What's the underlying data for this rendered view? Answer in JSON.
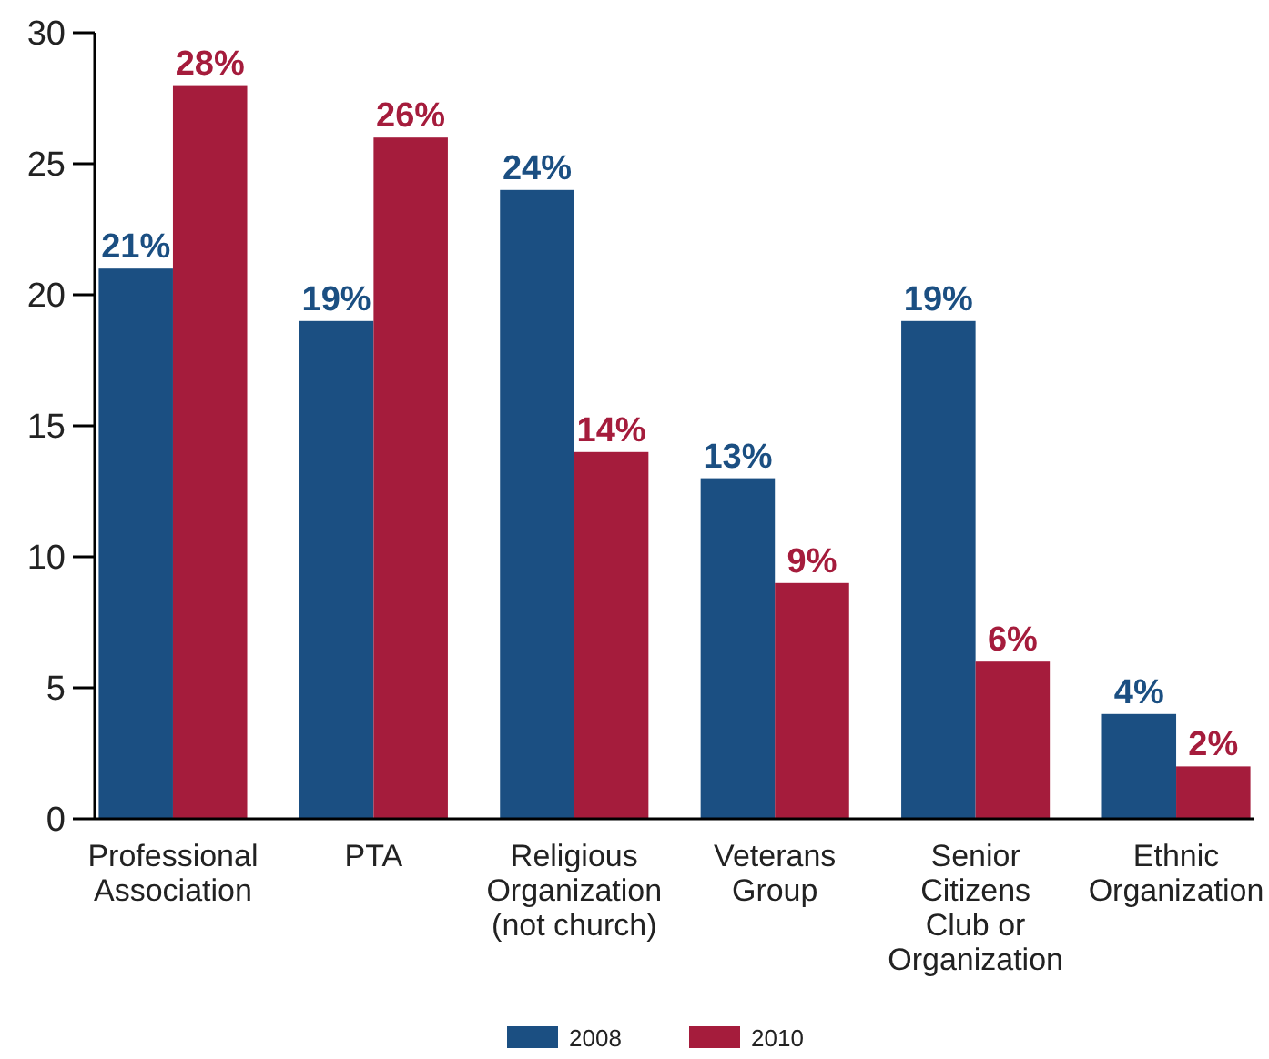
{
  "chart_data": {
    "type": "bar",
    "categories": [
      "Professional Association",
      "PTA",
      "Religious Organization (not church)",
      "Veterans Group",
      "Senior Citizens Club or Organization",
      "Ethnic Organization"
    ],
    "series": [
      {
        "name": "2008",
        "color": "#1b4f82",
        "values": [
          21,
          19,
          24,
          13,
          19,
          4
        ],
        "value_labels": [
          "21%",
          "19%",
          "24%",
          "13%",
          "19%",
          "4%"
        ]
      },
      {
        "name": "2010",
        "color": "#a51c3c",
        "values": [
          28,
          26,
          14,
          9,
          6,
          2
        ],
        "value_labels": [
          "28%",
          "26%",
          "14%",
          "9%",
          "6%",
          "2%"
        ]
      }
    ],
    "ylim": [
      0,
      30
    ],
    "yticks": [
      0,
      5,
      10,
      15,
      20,
      25,
      30
    ],
    "grid": false,
    "legend": "bottom"
  }
}
